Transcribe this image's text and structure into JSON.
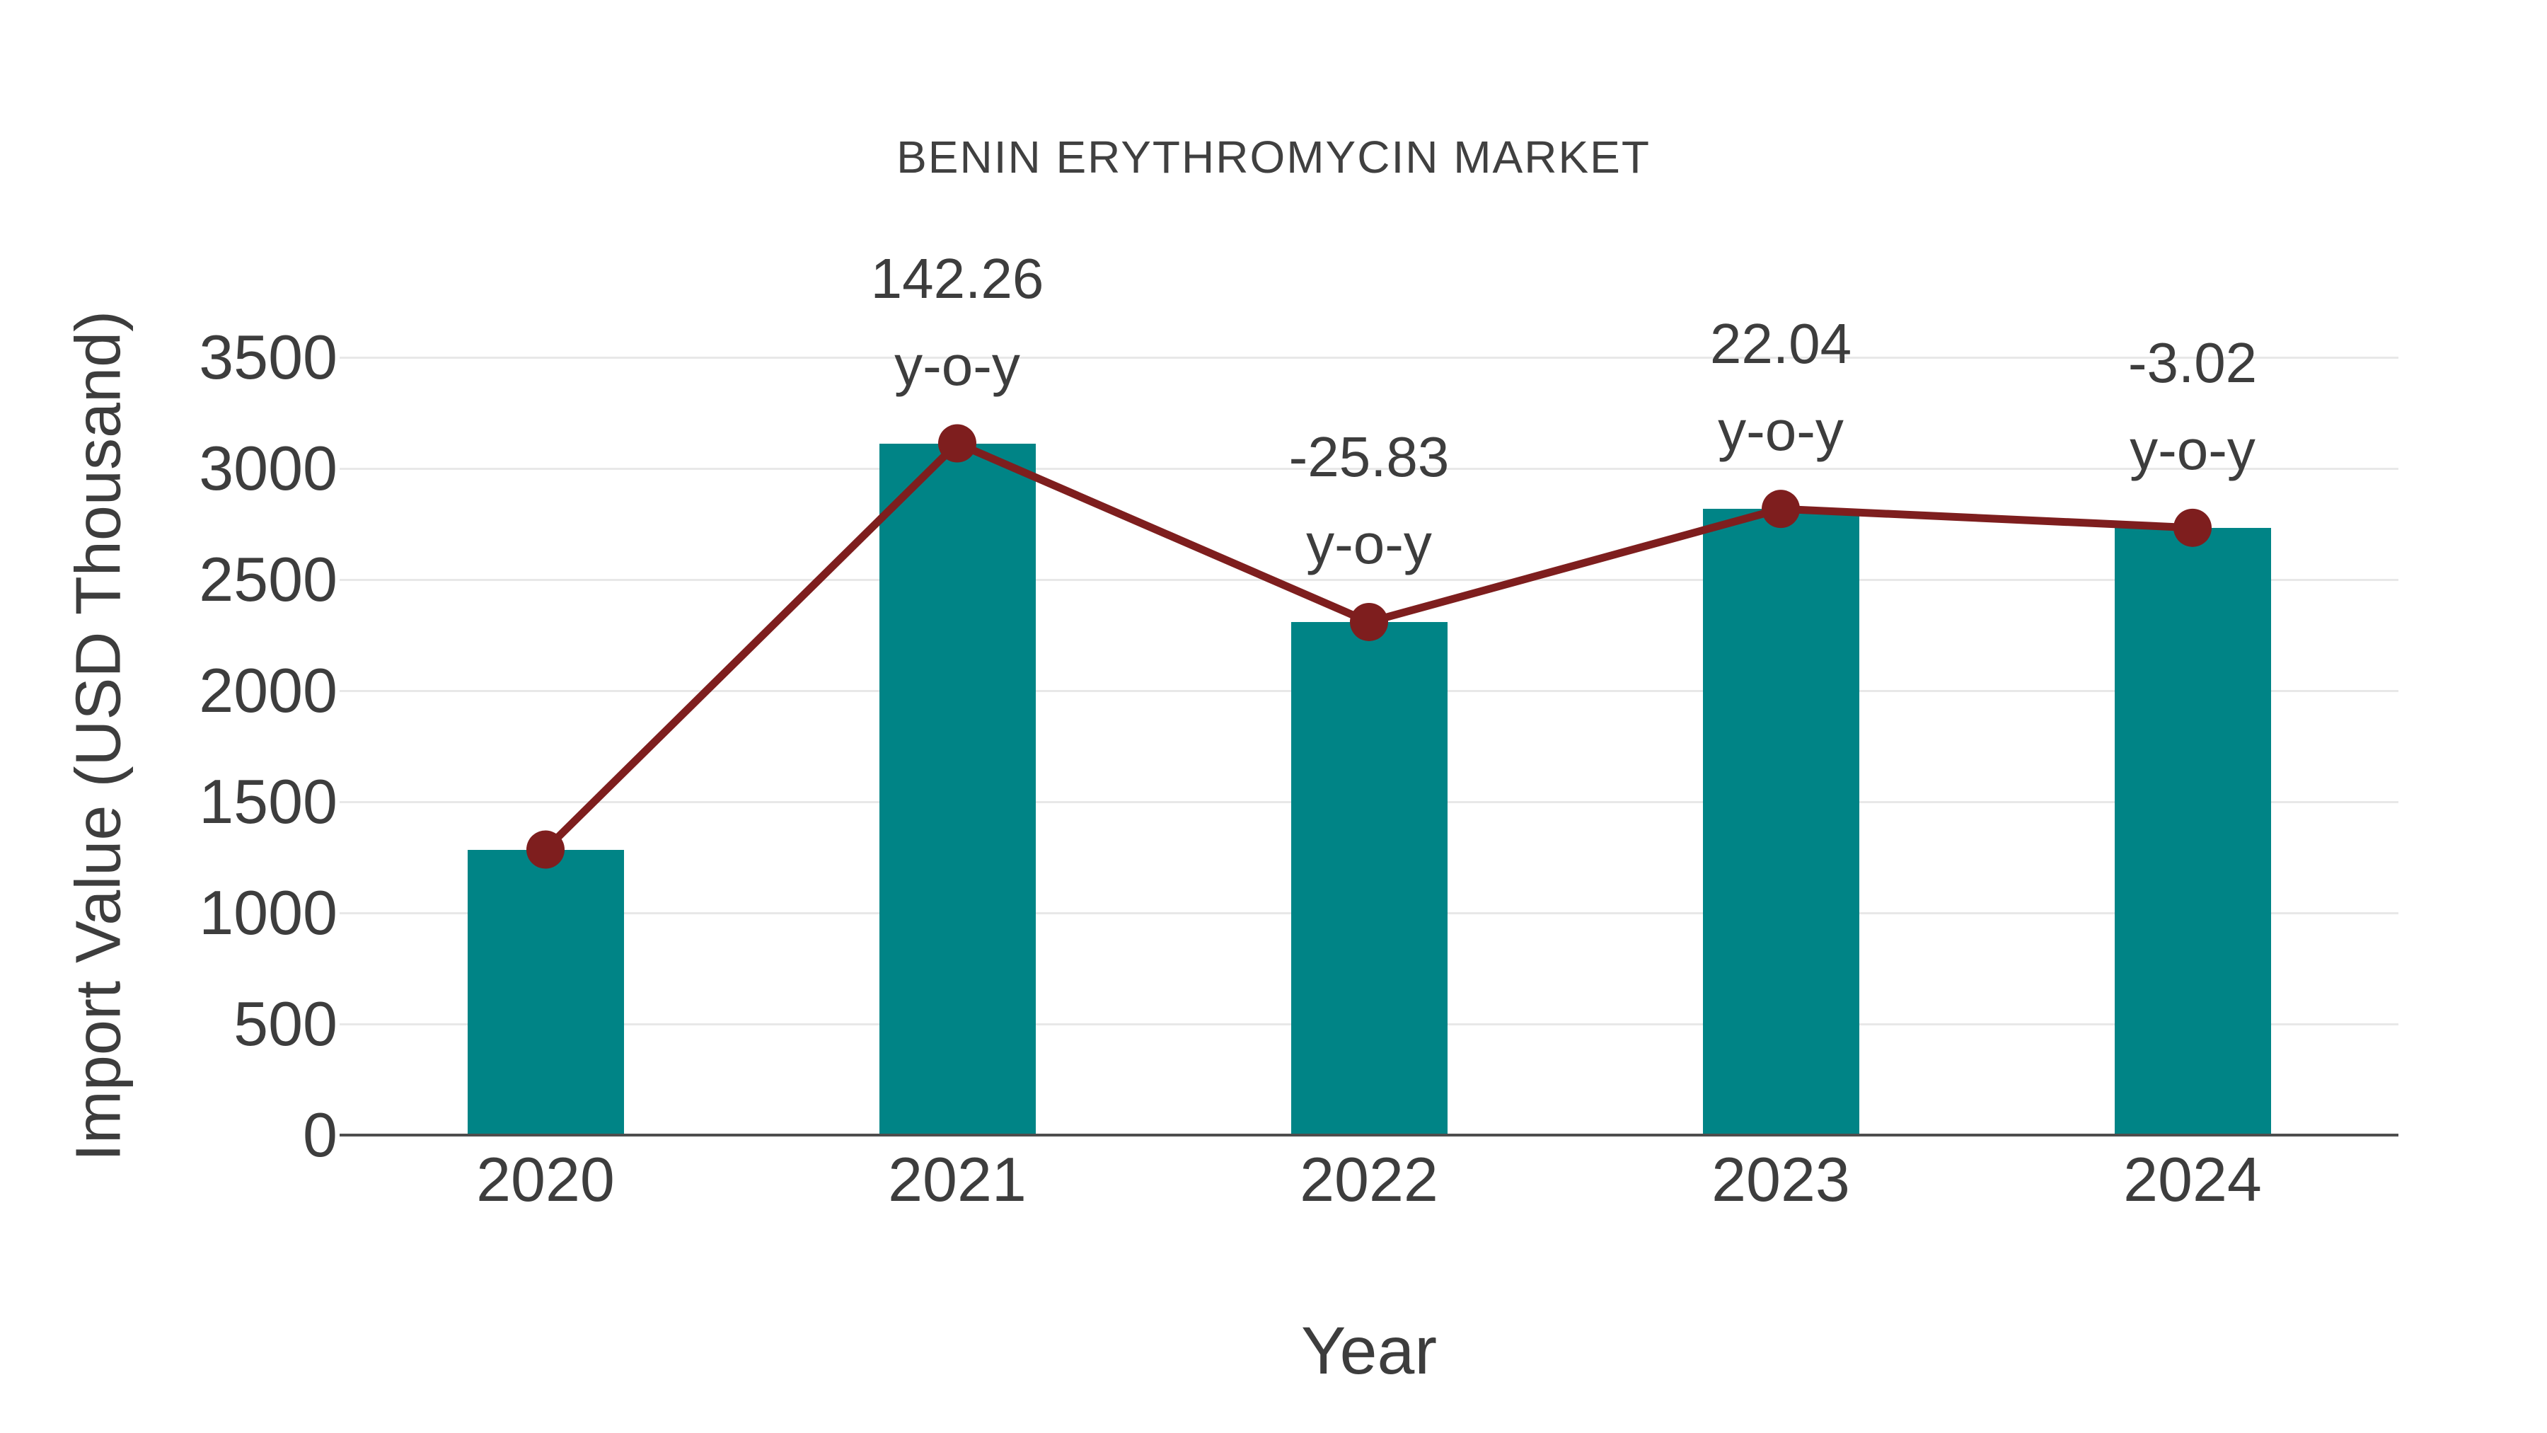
{
  "title": "BENIN ERYTHROMYCIN MARKET",
  "chart_data": {
    "type": "bar",
    "title": "BENIN ERYTHROMYCIN MARKET",
    "xlabel": "Year",
    "ylabel": "Import Value (USD Thousand)",
    "categories": [
      "2020",
      "2021",
      "2022",
      "2023",
      "2024"
    ],
    "series": [
      {
        "name": "Import Value (USD Thousand)",
        "type": "bar",
        "values": [
          1285,
          3113,
          2309,
          2818,
          2733
        ]
      },
      {
        "name": "y-o-y change (%)",
        "type": "line",
        "values": [
          null,
          142.26,
          -25.83,
          22.04,
          -3.02
        ]
      }
    ],
    "annotations": [
      {
        "category": "2021",
        "line1": "142.26",
        "line2": "y-o-y"
      },
      {
        "category": "2022",
        "line1": "-25.83",
        "line2": "y-o-y"
      },
      {
        "category": "2023",
        "line1": "22.04",
        "line2": "y-o-y"
      },
      {
        "category": "2024",
        "line1": "-3.02",
        "line2": "y-o-y"
      }
    ],
    "ylim": [
      0,
      3500
    ],
    "yticks": [
      0,
      500,
      1000,
      1500,
      2000,
      2500,
      3000,
      3500
    ],
    "grid": true,
    "legend_position": "none",
    "colors": {
      "bar": "#008486",
      "line": "#7e1e1e",
      "marker": "#7e1e1e",
      "text": "#3d3d3d",
      "grid": "#e8e8e8",
      "axis": "#4d4d4d"
    }
  }
}
